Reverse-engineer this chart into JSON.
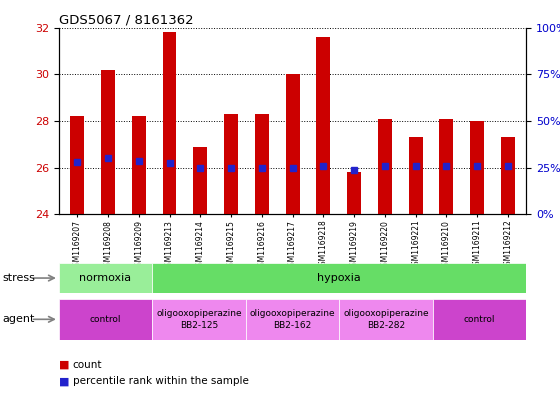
{
  "title": "GDS5067 / 8161362",
  "samples": [
    "GSM1169207",
    "GSM1169208",
    "GSM1169209",
    "GSM1169213",
    "GSM1169214",
    "GSM1169215",
    "GSM1169216",
    "GSM1169217",
    "GSM1169218",
    "GSM1169219",
    "GSM1169220",
    "GSM1169221",
    "GSM1169210",
    "GSM1169211",
    "GSM1169212"
  ],
  "counts": [
    28.2,
    30.2,
    28.2,
    31.8,
    26.9,
    28.3,
    28.3,
    30.0,
    31.6,
    25.8,
    28.1,
    27.3,
    28.1,
    28.0,
    27.3
  ],
  "percentiles": [
    26.25,
    26.4,
    26.3,
    26.2,
    26.0,
    26.0,
    26.0,
    26.0,
    26.05,
    25.88,
    26.05,
    26.05,
    26.05,
    26.05,
    26.05
  ],
  "ylim_left": [
    24,
    32
  ],
  "ylim_right": [
    0,
    100
  ],
  "yticks_left": [
    24,
    26,
    28,
    30,
    32
  ],
  "yticks_right": [
    0,
    25,
    50,
    75,
    100
  ],
  "bar_color": "#cc0000",
  "dot_color": "#2222cc",
  "bar_bottom": 24.0,
  "stress_groups": [
    {
      "label": "normoxia",
      "start": 0,
      "end": 3,
      "color": "#99ee99"
    },
    {
      "label": "hypoxia",
      "start": 3,
      "end": 15,
      "color": "#66dd66"
    }
  ],
  "agent_groups": [
    {
      "label": "control",
      "start": 0,
      "end": 3,
      "color": "#cc44cc"
    },
    {
      "label": "oligooxopiperazine\nBB2-125",
      "start": 3,
      "end": 6,
      "color": "#ee88ee"
    },
    {
      "label": "oligooxopiperazine\nBB2-162",
      "start": 6,
      "end": 9,
      "color": "#ee88ee"
    },
    {
      "label": "oligooxopiperazine\nBB2-282",
      "start": 9,
      "end": 12,
      "color": "#ee88ee"
    },
    {
      "label": "control",
      "start": 12,
      "end": 15,
      "color": "#cc44cc"
    }
  ],
  "tick_label_color_left": "#cc0000",
  "tick_label_color_right": "#0000cc",
  "chart_bg": "#ffffff",
  "grid_linestyle": "dotted",
  "bar_width": 0.45
}
